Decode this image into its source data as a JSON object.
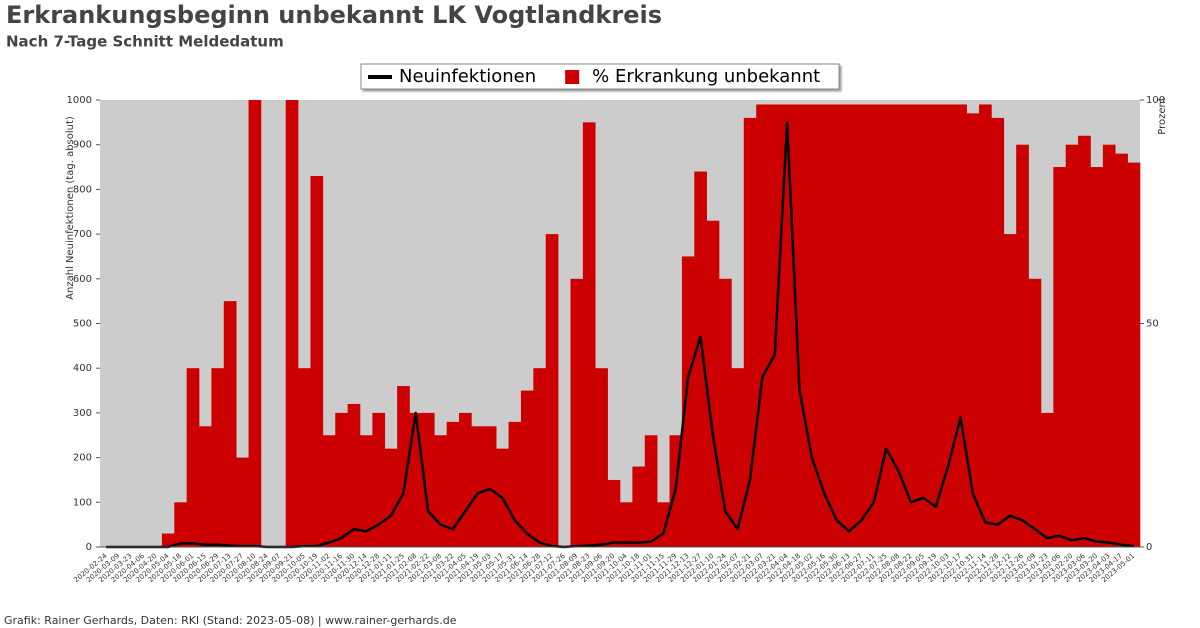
{
  "chart_data": {
    "type": "bar-line",
    "title": "Erkrankungsbeginn unbekannt LK Vogtlandkreis",
    "subtitle": "Nach 7-Tage Schnitt Meldedatum",
    "ylabel": "Anzahl Neuinfektionen (tag. absolut)",
    "y2label": "Prozent",
    "footer": "Grafik: Rainer Gerhards, Daten: RKI (Stand: 2023-05-08) | www.rainer-gerhards.de",
    "categories": [
      "2020-02-24",
      "2020-03-09",
      "2020-03-23",
      "2020-04-06",
      "2020-04-20",
      "2020-05-04",
      "2020-05-18",
      "2020-06-01",
      "2020-06-15",
      "2020-06-29",
      "2020-07-13",
      "2020-07-27",
      "2020-08-10",
      "2020-08-24",
      "2020-09-07",
      "2020-09-21",
      "2020-10-05",
      "2020-10-19",
      "2020-11-02",
      "2020-11-16",
      "2020-11-30",
      "2020-12-14",
      "2020-12-28",
      "2021-01-11",
      "2021-01-25",
      "2021-02-08",
      "2021-02-22",
      "2021-03-08",
      "2021-03-22",
      "2021-04-05",
      "2021-04-19",
      "2021-05-03",
      "2021-05-17",
      "2021-05-31",
      "2021-06-14",
      "2021-06-28",
      "2021-07-12",
      "2021-07-26",
      "2021-08-09",
      "2021-08-23",
      "2021-09-06",
      "2021-09-20",
      "2021-10-04",
      "2021-10-18",
      "2021-11-01",
      "2021-11-15",
      "2021-11-29",
      "2021-12-13",
      "2021-12-27",
      "2022-01-10",
      "2022-01-24",
      "2022-02-07",
      "2022-02-21",
      "2022-03-07",
      "2022-03-21",
      "2022-04-04",
      "2022-04-18",
      "2022-05-02",
      "2022-05-16",
      "2022-05-30",
      "2022-06-13",
      "2022-06-27",
      "2022-07-11",
      "2022-07-25",
      "2022-08-08",
      "2022-08-22",
      "2022-09-05",
      "2022-09-19",
      "2022-10-03",
      "2022-10-17",
      "2022-10-31",
      "2022-11-14",
      "2022-11-28",
      "2022-12-12",
      "2022-12-26",
      "2023-01-09",
      "2023-01-23",
      "2023-02-06",
      "2023-02-20",
      "2023-03-06",
      "2023-03-20",
      "2023-04-03",
      "2023-04-17",
      "2023-05-01"
    ],
    "series": [
      {
        "name": "Neuinfektionen",
        "type": "line",
        "color": "#000000",
        "values": [
          0,
          0,
          0,
          0,
          0,
          0,
          8,
          8,
          5,
          5,
          3,
          2,
          2,
          0,
          0,
          0,
          2,
          2,
          10,
          20,
          40,
          35,
          50,
          70,
          120,
          300,
          80,
          50,
          40,
          80,
          120,
          130,
          110,
          60,
          30,
          10,
          2,
          0,
          2,
          3,
          5,
          10,
          10,
          10,
          12,
          30,
          130,
          380,
          470,
          250,
          80,
          40,
          150,
          380,
          430,
          950,
          350,
          200,
          120,
          60,
          35,
          60,
          100,
          220,
          170,
          100,
          110,
          90,
          180,
          290,
          120,
          55,
          50,
          70,
          60,
          40,
          20,
          25,
          15,
          20,
          12,
          10,
          5,
          2
        ]
      },
      {
        "name": "% Erkrankung unbekannt",
        "type": "bar",
        "axis": "y2",
        "color": "#cc0000",
        "values": [
          0,
          0,
          0,
          0,
          0,
          3,
          10,
          40,
          27,
          40,
          55,
          20,
          100,
          0,
          0,
          100,
          40,
          83,
          25,
          30,
          32,
          25,
          30,
          22,
          36,
          30,
          30,
          25,
          28,
          30,
          27,
          27,
          22,
          28,
          35,
          40,
          70,
          0,
          60,
          95,
          40,
          15,
          10,
          18,
          25,
          10,
          25,
          65,
          84,
          73,
          60,
          40,
          96,
          99,
          99,
          99,
          99,
          99,
          99,
          99,
          99,
          99,
          99,
          99,
          99,
          99,
          99,
          99,
          99,
          99,
          97,
          99,
          96,
          70,
          90,
          60,
          30,
          85,
          90,
          92,
          85,
          90,
          88,
          86
        ]
      }
    ],
    "ylim": [
      0,
      1000
    ],
    "yticks": [
      0,
      100,
      200,
      300,
      400,
      500,
      600,
      700,
      800,
      900,
      1000
    ],
    "y2lim": [
      0,
      100
    ],
    "y2ticks": [
      0,
      50,
      100
    ],
    "legend": "top"
  }
}
